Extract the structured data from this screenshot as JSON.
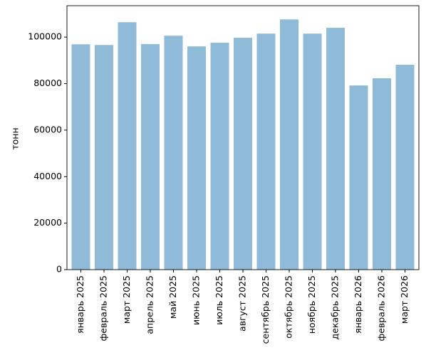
{
  "chart_data": {
    "type": "bar",
    "ylabel": "тонн",
    "categories": [
      "январь 2025",
      "февраль 2025",
      "март 2025",
      "апрель 2025",
      "май 2025",
      "июнь 2025",
      "июль 2025",
      "август 2025",
      "сентябрь 2025",
      "октябрь 2025",
      "ноябрь 2025",
      "декабрь 2025",
      "январь 2026",
      "февраль 2026",
      "март 2026"
    ],
    "values": [
      96900,
      96600,
      106400,
      97000,
      100600,
      96000,
      97600,
      99700,
      101500,
      107600,
      101500,
      104000,
      79200,
      82300,
      88100
    ],
    "color": "#8fbbd9",
    "ylim": [
      0,
      113500
    ],
    "yticks": [
      0,
      20000,
      40000,
      60000,
      80000,
      100000
    ],
    "grid": false
  }
}
